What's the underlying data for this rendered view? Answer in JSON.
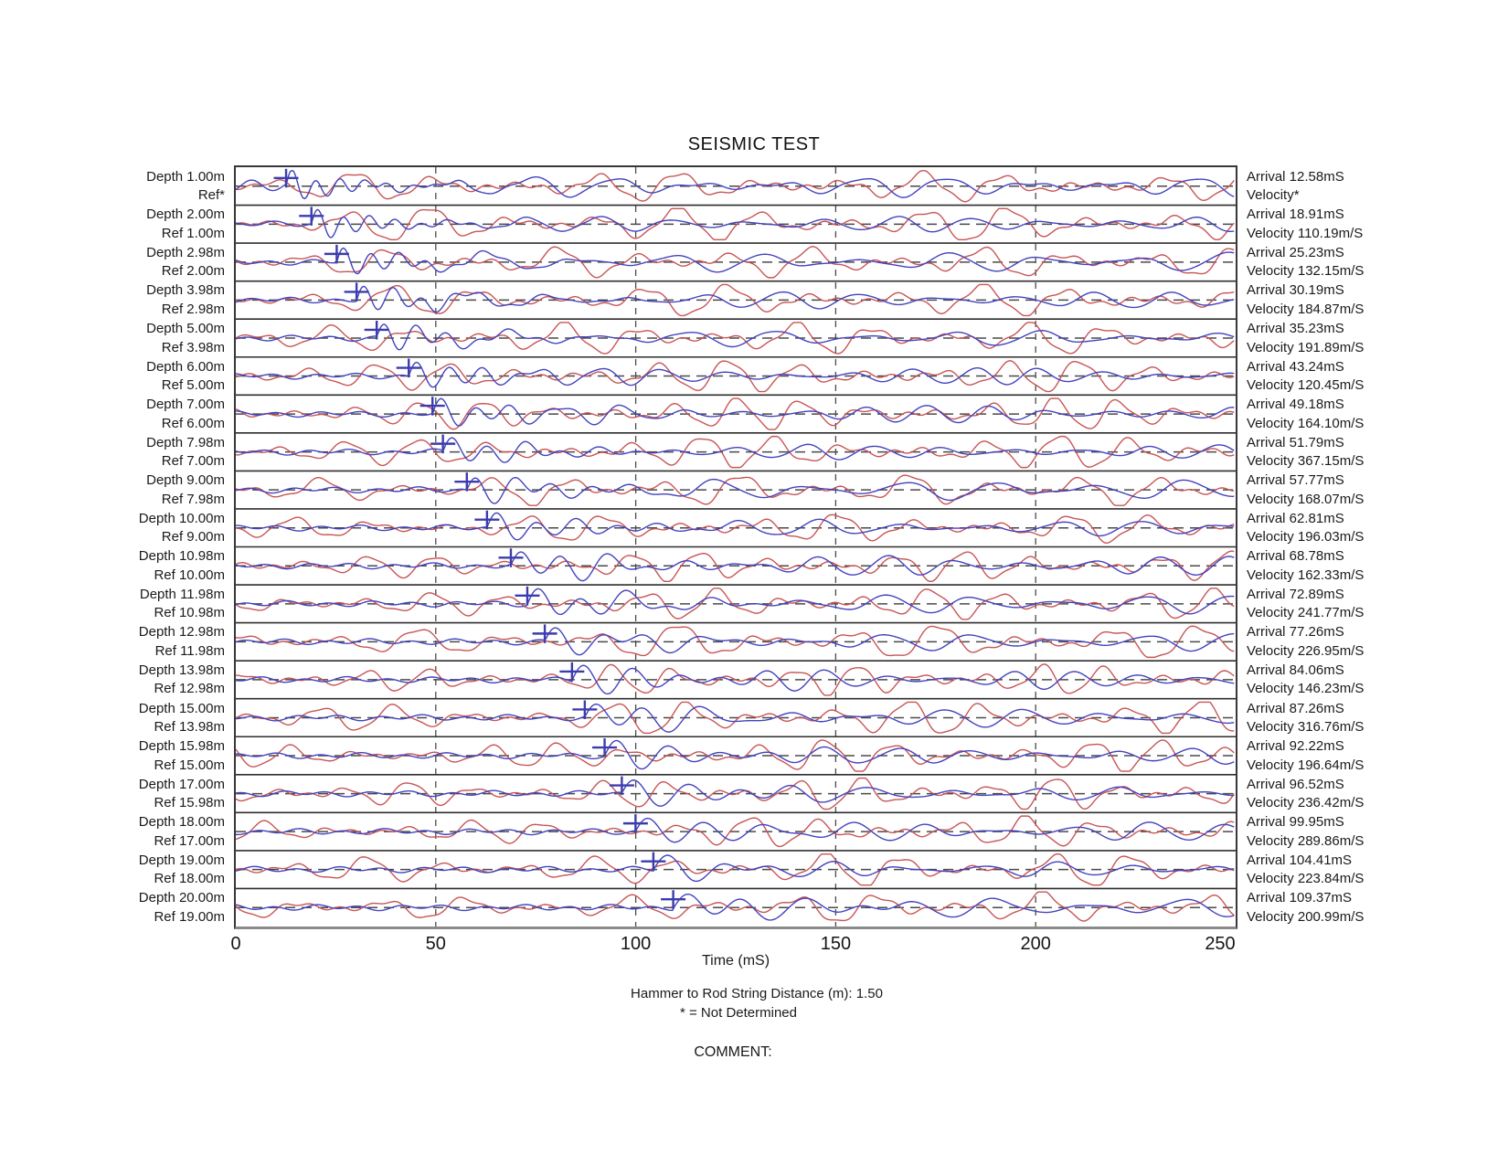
{
  "title": "SEISMIC TEST",
  "axis": {
    "label": "Time (mS)",
    "ticks": [
      "0",
      "50",
      "100",
      "150",
      "200",
      "250"
    ]
  },
  "footer": {
    "hammer_line": "Hammer to Rod String Distance (m): 1.50",
    "note_line": "* = Not Determined",
    "comment_label": "COMMENT:"
  },
  "colors": {
    "reference_trace_red": "#c85555",
    "depth_trace_blue": "#4343bd",
    "arrival_marker": "#3c3cae",
    "baseline_dash": "#4a4a4a",
    "grid_dash": "#4a4a4a",
    "row_divider": "#2e2e2e",
    "box_border": "#383838",
    "axis_line": "#8a8a8a"
  },
  "chart_data": {
    "type": "line",
    "subtype": "seismic-trace-stack",
    "title": "SEISMIC TEST",
    "xlabel": "Time (mS)",
    "x_range_ms": [
      0,
      250
    ],
    "x_ticks_ms": [
      0,
      50,
      100,
      150,
      200,
      250
    ],
    "grid": "vertical-dashed-at-ticks",
    "traces_per_row": [
      "reference-trace-red",
      "depth-trace-blue"
    ],
    "marker": "arrival-pick-cross-on-each-row",
    "rows": [
      {
        "depth_label": "Depth 1.00m",
        "ref_label": "Ref*",
        "arrival_label": "Arrival 12.58mS",
        "velocity_label": "Velocity*",
        "depth_m": 1.0,
        "ref_m": null,
        "arrival_ms": 12.58,
        "velocity_m_per_s": null
      },
      {
        "depth_label": "Depth 2.00m",
        "ref_label": "Ref 1.00m",
        "arrival_label": "Arrival 18.91mS",
        "velocity_label": "Velocity 110.19m/S",
        "depth_m": 2.0,
        "ref_m": 1.0,
        "arrival_ms": 18.91,
        "velocity_m_per_s": 110.19
      },
      {
        "depth_label": "Depth 2.98m",
        "ref_label": "Ref 2.00m",
        "arrival_label": "Arrival 25.23mS",
        "velocity_label": "Velocity 132.15m/S",
        "depth_m": 2.98,
        "ref_m": 2.0,
        "arrival_ms": 25.23,
        "velocity_m_per_s": 132.15
      },
      {
        "depth_label": "Depth 3.98m",
        "ref_label": "Ref 2.98m",
        "arrival_label": "Arrival 30.19mS",
        "velocity_label": "Velocity 184.87m/S",
        "depth_m": 3.98,
        "ref_m": 2.98,
        "arrival_ms": 30.19,
        "velocity_m_per_s": 184.87
      },
      {
        "depth_label": "Depth 5.00m",
        "ref_label": "Ref 3.98m",
        "arrival_label": "Arrival 35.23mS",
        "velocity_label": "Velocity 191.89m/S",
        "depth_m": 5.0,
        "ref_m": 3.98,
        "arrival_ms": 35.23,
        "velocity_m_per_s": 191.89
      },
      {
        "depth_label": "Depth 6.00m",
        "ref_label": "Ref 5.00m",
        "arrival_label": "Arrival 43.24mS",
        "velocity_label": "Velocity 120.45m/S",
        "depth_m": 6.0,
        "ref_m": 5.0,
        "arrival_ms": 43.24,
        "velocity_m_per_s": 120.45
      },
      {
        "depth_label": "Depth 7.00m",
        "ref_label": "Ref 6.00m",
        "arrival_label": "Arrival 49.18mS",
        "velocity_label": "Velocity 164.10m/S",
        "depth_m": 7.0,
        "ref_m": 6.0,
        "arrival_ms": 49.18,
        "velocity_m_per_s": 164.1
      },
      {
        "depth_label": "Depth 7.98m",
        "ref_label": "Ref 7.00m",
        "arrival_label": "Arrival 51.79mS",
        "velocity_label": "Velocity 367.15m/S",
        "depth_m": 7.98,
        "ref_m": 7.0,
        "arrival_ms": 51.79,
        "velocity_m_per_s": 367.15
      },
      {
        "depth_label": "Depth 9.00m",
        "ref_label": "Ref 7.98m",
        "arrival_label": "Arrival 57.77mS",
        "velocity_label": "Velocity 168.07m/S",
        "depth_m": 9.0,
        "ref_m": 7.98,
        "arrival_ms": 57.77,
        "velocity_m_per_s": 168.07
      },
      {
        "depth_label": "Depth 10.00m",
        "ref_label": "Ref 9.00m",
        "arrival_label": "Arrival 62.81mS",
        "velocity_label": "Velocity 196.03m/S",
        "depth_m": 10.0,
        "ref_m": 9.0,
        "arrival_ms": 62.81,
        "velocity_m_per_s": 196.03
      },
      {
        "depth_label": "Depth 10.98m",
        "ref_label": "Ref 10.00m",
        "arrival_label": "Arrival 68.78mS",
        "velocity_label": "Velocity 162.33m/S",
        "depth_m": 10.98,
        "ref_m": 10.0,
        "arrival_ms": 68.78,
        "velocity_m_per_s": 162.33
      },
      {
        "depth_label": "Depth 11.98m",
        "ref_label": "Ref 10.98m",
        "arrival_label": "Arrival 72.89mS",
        "velocity_label": "Velocity 241.77m/S",
        "depth_m": 11.98,
        "ref_m": 10.98,
        "arrival_ms": 72.89,
        "velocity_m_per_s": 241.77
      },
      {
        "depth_label": "Depth 12.98m",
        "ref_label": "Ref 11.98m",
        "arrival_label": "Arrival 77.26mS",
        "velocity_label": "Velocity 226.95m/S",
        "depth_m": 12.98,
        "ref_m": 11.98,
        "arrival_ms": 77.26,
        "velocity_m_per_s": 226.95
      },
      {
        "depth_label": "Depth 13.98m",
        "ref_label": "Ref 12.98m",
        "arrival_label": "Arrival 84.06mS",
        "velocity_label": "Velocity 146.23m/S",
        "depth_m": 13.98,
        "ref_m": 12.98,
        "arrival_ms": 84.06,
        "velocity_m_per_s": 146.23
      },
      {
        "depth_label": "Depth 15.00m",
        "ref_label": "Ref 13.98m",
        "arrival_label": "Arrival 87.26mS",
        "velocity_label": "Velocity 316.76m/S",
        "depth_m": 15.0,
        "ref_m": 13.98,
        "arrival_ms": 87.26,
        "velocity_m_per_s": 316.76
      },
      {
        "depth_label": "Depth 15.98m",
        "ref_label": "Ref 15.00m",
        "arrival_label": "Arrival 92.22mS",
        "velocity_label": "Velocity 196.64m/S",
        "depth_m": 15.98,
        "ref_m": 15.0,
        "arrival_ms": 92.22,
        "velocity_m_per_s": 196.64
      },
      {
        "depth_label": "Depth 17.00m",
        "ref_label": "Ref 15.98m",
        "arrival_label": "Arrival 96.52mS",
        "velocity_label": "Velocity 236.42m/S",
        "depth_m": 17.0,
        "ref_m": 15.98,
        "arrival_ms": 96.52,
        "velocity_m_per_s": 236.42
      },
      {
        "depth_label": "Depth 18.00m",
        "ref_label": "Ref 17.00m",
        "arrival_label": "Arrival 99.95mS",
        "velocity_label": "Velocity 289.86m/S",
        "depth_m": 18.0,
        "ref_m": 17.0,
        "arrival_ms": 99.95,
        "velocity_m_per_s": 289.86
      },
      {
        "depth_label": "Depth 19.00m",
        "ref_label": "Ref 18.00m",
        "arrival_label": "Arrival 104.41mS",
        "velocity_label": "Velocity 223.84m/S",
        "depth_m": 19.0,
        "ref_m": 18.0,
        "arrival_ms": 104.41,
        "velocity_m_per_s": 223.84
      },
      {
        "depth_label": "Depth 20.00m",
        "ref_label": "Ref 19.00m",
        "arrival_label": "Arrival 109.37mS",
        "velocity_label": "Velocity 200.99m/S",
        "depth_m": 20.0,
        "ref_m": 19.0,
        "arrival_ms": 109.37,
        "velocity_m_per_s": 200.99
      }
    ]
  }
}
